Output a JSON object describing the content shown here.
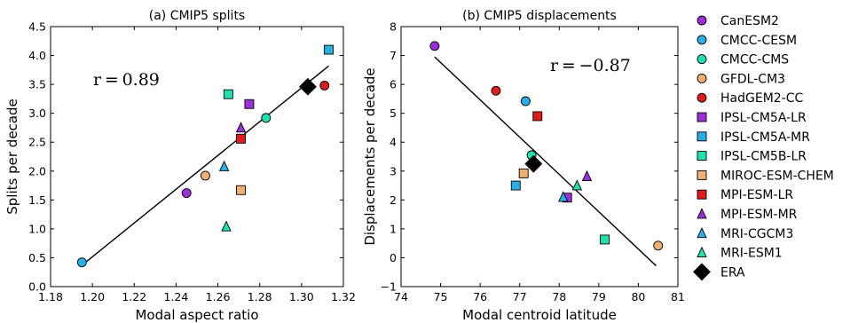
{
  "chart_data": [
    {
      "type": "scatter",
      "title": "(a) CMIP5 splits",
      "xlabel": "Modal aspect ratio",
      "ylabel": "Splits per decade",
      "annotation": "r = 0.89",
      "xlim": [
        1.18,
        1.32
      ],
      "ylim": [
        0.0,
        4.5
      ],
      "xticks": [
        "1.18",
        "1.20",
        "1.22",
        "1.24",
        "1.26",
        "1.28",
        "1.30",
        "1.32"
      ],
      "yticks": [
        "0.0",
        "0.5",
        "1.0",
        "1.5",
        "2.0",
        "2.5",
        "3.0",
        "3.5",
        "4.0",
        "4.5"
      ],
      "fit_line": {
        "x": [
          1.195,
          1.313
        ],
        "y": [
          0.37,
          3.82
        ]
      },
      "points": [
        {
          "model": "CanESM2",
          "x": 1.245,
          "y": 1.62
        },
        {
          "model": "CMCC-CESM",
          "x": 1.195,
          "y": 0.42
        },
        {
          "model": "CMCC-CMS",
          "x": 1.283,
          "y": 2.92
        },
        {
          "model": "GFDL-CM3",
          "x": 1.254,
          "y": 1.92
        },
        {
          "model": "HadGEM2-CC",
          "x": 1.311,
          "y": 3.48
        },
        {
          "model": "IPSL-CM5A-LR",
          "x": 1.275,
          "y": 3.16
        },
        {
          "model": "IPSL-CM5A-MR",
          "x": 1.313,
          "y": 4.1
        },
        {
          "model": "IPSL-CM5B-LR",
          "x": 1.265,
          "y": 3.33
        },
        {
          "model": "MIROC-ESM-CHEM",
          "x": 1.271,
          "y": 1.67
        },
        {
          "model": "MPI-ESM-LR",
          "x": 1.271,
          "y": 2.56
        },
        {
          "model": "MPI-ESM-MR",
          "x": 1.271,
          "y": 2.75
        },
        {
          "model": "MRI-CGCM3",
          "x": 1.263,
          "y": 2.08
        },
        {
          "model": "MRI-ESM1",
          "x": 1.264,
          "y": 1.04
        },
        {
          "model": "ERA",
          "x": 1.303,
          "y": 3.46
        }
      ]
    },
    {
      "type": "scatter",
      "title": "(b) CMIP5 displacements",
      "xlabel": "Modal centroid latitude",
      "ylabel": "Displacements per decade",
      "annotation": "r = −0.87",
      "xlim": [
        74,
        81
      ],
      "ylim": [
        -1,
        8
      ],
      "xticks": [
        "74",
        "75",
        "76",
        "77",
        "78",
        "79",
        "80",
        "81"
      ],
      "yticks": [
        "−1",
        "0",
        "1",
        "2",
        "3",
        "4",
        "5",
        "6",
        "7",
        "8"
      ],
      "fit_line": {
        "x": [
          74.85,
          80.45
        ],
        "y": [
          6.95,
          -0.28
        ]
      },
      "points": [
        {
          "model": "CanESM2",
          "x": 74.85,
          "y": 7.33
        },
        {
          "model": "CMCC-CESM",
          "x": 77.15,
          "y": 5.42
        },
        {
          "model": "CMCC-CMS",
          "x": 77.3,
          "y": 3.55
        },
        {
          "model": "GFDL-CM3",
          "x": 80.5,
          "y": 0.42
        },
        {
          "model": "HadGEM2-CC",
          "x": 76.4,
          "y": 5.78
        },
        {
          "model": "IPSL-CM5A-LR",
          "x": 78.2,
          "y": 2.08
        },
        {
          "model": "IPSL-CM5A-MR",
          "x": 76.9,
          "y": 2.5
        },
        {
          "model": "IPSL-CM5B-LR",
          "x": 79.15,
          "y": 0.63
        },
        {
          "model": "MIROC-ESM-CHEM",
          "x": 77.1,
          "y": 2.92
        },
        {
          "model": "MPI-ESM-LR",
          "x": 77.45,
          "y": 4.9
        },
        {
          "model": "MPI-ESM-MR",
          "x": 78.7,
          "y": 2.82
        },
        {
          "model": "MRI-CGCM3",
          "x": 78.1,
          "y": 2.1
        },
        {
          "model": "MRI-ESM1",
          "x": 78.45,
          "y": 2.5
        },
        {
          "model": "ERA",
          "x": 77.35,
          "y": 3.25
        }
      ]
    }
  ],
  "legend": [
    {
      "label": "CanESM2",
      "marker": "circle",
      "color": "#9b30d8"
    },
    {
      "label": "CMCC-CESM",
      "marker": "circle",
      "color": "#2aaee6"
    },
    {
      "label": "CMCC-CMS",
      "marker": "circle",
      "color": "#20e0b0"
    },
    {
      "label": "GFDL-CM3",
      "marker": "circle",
      "color": "#f0b070"
    },
    {
      "label": "HadGEM2-CC",
      "marker": "circle",
      "color": "#e01b1b"
    },
    {
      "label": "IPSL-CM5A-LR",
      "marker": "square",
      "color": "#9b30d8"
    },
    {
      "label": "IPSL-CM5A-MR",
      "marker": "square",
      "color": "#2aaee6"
    },
    {
      "label": "IPSL-CM5B-LR",
      "marker": "square",
      "color": "#20e0b0"
    },
    {
      "label": "MIROC-ESM-CHEM",
      "marker": "square",
      "color": "#f0b070"
    },
    {
      "label": "MPI-ESM-LR",
      "marker": "square",
      "color": "#e01b1b"
    },
    {
      "label": "MPI-ESM-MR",
      "marker": "triangle",
      "color": "#9b30d8"
    },
    {
      "label": "MRI-CGCM3",
      "marker": "triangle",
      "color": "#2aaee6"
    },
    {
      "label": "MRI-ESM1",
      "marker": "triangle",
      "color": "#20e0b0"
    },
    {
      "label": "ERA",
      "marker": "diamond",
      "color": "#000000"
    }
  ]
}
